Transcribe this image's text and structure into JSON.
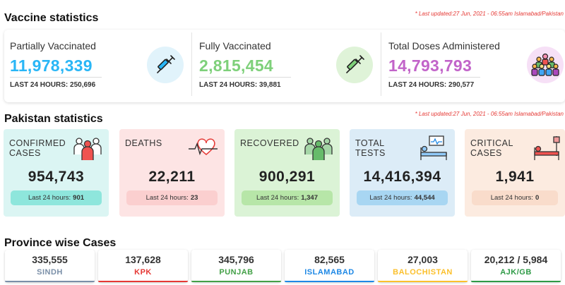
{
  "vaccine": {
    "title": "Vaccine statistics",
    "updated": "* Last updated:27 Jun, 2021 - 06:55am Islamabad/Pakistan",
    "items": [
      {
        "label": "Partially Vaccinated",
        "value": "11,978,339",
        "last": "LAST 24 HOURS: 250,696",
        "color": "#29b6f6",
        "icon_bg": "#e1f3fb",
        "icon": "syringe-icon"
      },
      {
        "label": "Fully Vaccinated",
        "value": "2,815,454",
        "last": "LAST 24 HOURS: 39,881",
        "color": "#7ed07a",
        "icon_bg": "#dff3d8",
        "icon": "syringe-icon"
      },
      {
        "label": "Total Doses Administered",
        "value": "14,793,793",
        "last": "LAST 24 HOURS: 290,577",
        "color": "#c264c9",
        "icon_bg": "#f6e0f6",
        "icon": "crowd-icon"
      }
    ]
  },
  "pakistan": {
    "title": "Pakistan statistics",
    "updated": "* Last updated:27 Jun, 2021 - 06:55am Islamabad/Pakistan",
    "pill_prefix": "Last 24 hours:",
    "cards": [
      {
        "label_1": "CONFIRMED",
        "label_2": "CASES",
        "value": "954,743",
        "last": "901",
        "bg": "#dbf5f3",
        "pill": "#8ee6dc",
        "icon": "people-icon"
      },
      {
        "label_1": "DEATHS",
        "label_2": "",
        "value": "22,211",
        "last": "23",
        "bg": "#fde4e4",
        "pill": "#fbcfcf",
        "icon": "heartbeat-icon"
      },
      {
        "label_1": "RECOVERED",
        "label_2": "",
        "value": "900,291",
        "last": "1,347",
        "bg": "#dbf3d6",
        "pill": "#b7e6a8",
        "icon": "recovered-people-icon"
      },
      {
        "label_1": "TOTAL",
        "label_2": "TESTS",
        "value": "14,416,394",
        "last": "44,544",
        "bg": "#dcecf7",
        "pill": "#a8d6f2",
        "icon": "hospital-bed-icon"
      },
      {
        "label_1": "CRITICAL",
        "label_2": "CASES",
        "value": "1,941",
        "last": "0",
        "bg": "#fcebe0",
        "pill": "#f9dccb",
        "icon": "icu-bed-icon"
      }
    ]
  },
  "province": {
    "title": "Province wise Cases",
    "items": [
      {
        "value": "335,555",
        "name": "SINDH",
        "color": "#7a8fa8"
      },
      {
        "value": "137,628",
        "name": "KPK",
        "color": "#e53935"
      },
      {
        "value": "345,796",
        "name": "PUNJAB",
        "color": "#43a047"
      },
      {
        "value": "82,565",
        "name": "ISLAMABAD",
        "color": "#1e88e5"
      },
      {
        "value": "27,003",
        "name": "BALOCHISTAN",
        "color": "#fbc02d"
      },
      {
        "value": "20,212 / 5,984",
        "name": "AJK/GB",
        "color": "#2e9a46"
      }
    ]
  }
}
